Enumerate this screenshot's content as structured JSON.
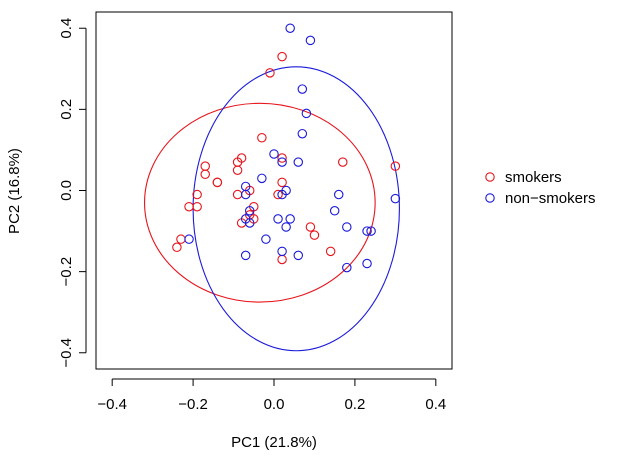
{
  "chart_data": {
    "type": "scatter",
    "xlabel": "PC1 (21.8%)",
    "ylabel": "PC2 (16.8%)",
    "xlim": [
      -0.44,
      0.44
    ],
    "ylim": [
      -0.44,
      0.44
    ],
    "xticks": [
      -0.4,
      -0.2,
      0.0,
      0.2,
      0.4
    ],
    "yticks": [
      -0.4,
      -0.2,
      0.0,
      0.2,
      0.4
    ],
    "xtick_labels": [
      "−0.4",
      "−0.2",
      "0.0",
      "0.2",
      "0.4"
    ],
    "ytick_labels": [
      "−0.4",
      "−0.2",
      "0.0",
      "0.2",
      "0.4"
    ],
    "grid": false,
    "legend_position": "right",
    "series": [
      {
        "name": "smokers",
        "color": "#e8141c",
        "marker": "open-circle",
        "points": [
          [
            0.02,
            0.33
          ],
          [
            -0.01,
            0.29
          ],
          [
            -0.03,
            0.13
          ],
          [
            -0.08,
            0.08
          ],
          [
            -0.09,
            0.07
          ],
          [
            -0.09,
            0.05
          ],
          [
            -0.17,
            0.06
          ],
          [
            -0.17,
            0.04
          ],
          [
            -0.14,
            0.02
          ],
          [
            -0.14,
            0.02
          ],
          [
            -0.06,
            0.0
          ],
          [
            -0.09,
            -0.01
          ],
          [
            -0.19,
            -0.01
          ],
          [
            -0.21,
            -0.04
          ],
          [
            -0.19,
            -0.04
          ],
          [
            -0.05,
            -0.04
          ],
          [
            -0.06,
            -0.06
          ],
          [
            -0.08,
            -0.08
          ],
          [
            -0.05,
            -0.07
          ],
          [
            -0.23,
            -0.12
          ],
          [
            -0.24,
            -0.14
          ],
          [
            0.02,
            0.08
          ],
          [
            0.02,
            0.02
          ],
          [
            0.01,
            -0.01
          ],
          [
            0.17,
            0.07
          ],
          [
            0.3,
            0.06
          ],
          [
            0.09,
            -0.09
          ],
          [
            0.1,
            -0.11
          ],
          [
            0.14,
            -0.15
          ],
          [
            0.02,
            -0.17
          ]
        ]
      },
      {
        "name": "non−smokers",
        "color": "#1a1adb",
        "marker": "open-circle",
        "points": [
          [
            0.04,
            0.4
          ],
          [
            0.09,
            0.37
          ],
          [
            0.07,
            0.25
          ],
          [
            0.08,
            0.19
          ],
          [
            0.07,
            0.14
          ],
          [
            0.0,
            0.09
          ],
          [
            0.02,
            0.07
          ],
          [
            0.06,
            0.07
          ],
          [
            -0.03,
            0.03
          ],
          [
            -0.07,
            0.01
          ],
          [
            -0.07,
            -0.01
          ],
          [
            0.03,
            0.0
          ],
          [
            0.02,
            -0.01
          ],
          [
            0.16,
            -0.01
          ],
          [
            0.3,
            -0.02
          ],
          [
            -0.06,
            -0.05
          ],
          [
            -0.07,
            -0.07
          ],
          [
            -0.06,
            -0.08
          ],
          [
            0.01,
            -0.07
          ],
          [
            0.04,
            -0.07
          ],
          [
            0.15,
            -0.05
          ],
          [
            0.03,
            -0.09
          ],
          [
            0.18,
            -0.09
          ],
          [
            -0.21,
            -0.12
          ],
          [
            -0.02,
            -0.12
          ],
          [
            0.02,
            -0.15
          ],
          [
            -0.07,
            -0.16
          ],
          [
            0.06,
            -0.16
          ],
          [
            0.23,
            -0.1
          ],
          [
            0.24,
            -0.1
          ],
          [
            0.23,
            -0.18
          ],
          [
            0.18,
            -0.19
          ]
        ]
      }
    ],
    "ellipses": [
      {
        "series": "smokers",
        "color": "#e8141c",
        "center": [
          -0.035,
          -0.03
        ],
        "rx": 0.285,
        "ry": 0.245
      },
      {
        "series": "non−smokers",
        "color": "#1a1adb",
        "center": [
          0.055,
          -0.045
        ],
        "rx": 0.255,
        "ry": 0.35
      }
    ],
    "legend": [
      {
        "label": "smokers",
        "color": "#e8141c"
      },
      {
        "label": "non−smokers",
        "color": "#1a1adb"
      }
    ]
  }
}
